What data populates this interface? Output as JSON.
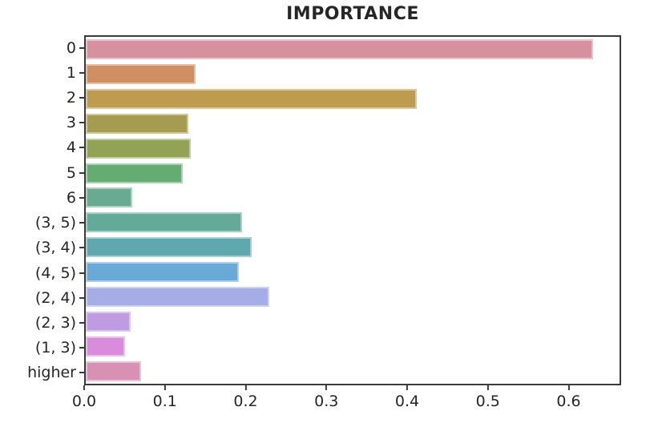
{
  "chart_data": {
    "type": "bar",
    "orientation": "horizontal",
    "title": "IMPORTANCE",
    "categories": [
      "0",
      "1",
      "2",
      "3",
      "4",
      "5",
      "6",
      "(3, 5)",
      "(3, 4)",
      "(4, 5)",
      "(2, 4)",
      "(2, 3)",
      "(1, 3)",
      "higher"
    ],
    "values": [
      0.632,
      0.137,
      0.412,
      0.128,
      0.131,
      0.121,
      0.058,
      0.195,
      0.207,
      0.191,
      0.229,
      0.056,
      0.049,
      0.069
    ],
    "bar_colors": [
      "#d7909f",
      "#d08f63",
      "#bd9b4f",
      "#a69c51",
      "#93a356",
      "#65ac72",
      "#69ab92",
      "#63aa98",
      "#5fa8ae",
      "#69a9d6",
      "#a4ade6",
      "#bf9ce1",
      "#d98bdc",
      "#d891b4"
    ],
    "xlabel": "",
    "ylabel": "",
    "x_ticks": [
      0.0,
      0.1,
      0.2,
      0.3,
      0.4,
      0.5,
      0.6
    ],
    "x_tick_labels": [
      "0.0",
      "0.1",
      "0.2",
      "0.3",
      "0.4",
      "0.5",
      "0.6"
    ],
    "xlim": [
      0,
      0.665
    ],
    "grid": false,
    "legend": null,
    "spine_color": "#3a3a3a",
    "text_color": "#262626",
    "background": "#ffffff"
  }
}
